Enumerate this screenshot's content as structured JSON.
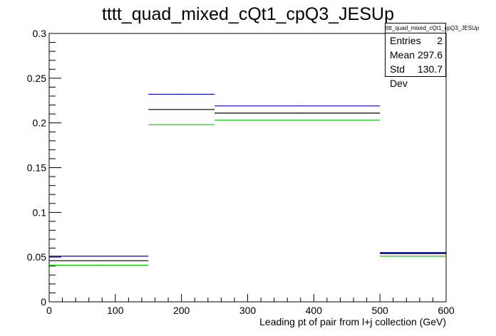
{
  "chart_data": {
    "type": "histogram",
    "title": "tttt_quad_mixed_cQt1_cpQ3_JESUp",
    "xlabel": "Leading pt of pair from l+j collection (GeV)",
    "ylabel": "",
    "xlim": [
      0,
      600
    ],
    "ylim": [
      0,
      0.3
    ],
    "x_ticks": [
      "0",
      "100",
      "200",
      "300",
      "400",
      "500",
      "600"
    ],
    "y_ticks": [
      "0",
      "0.05",
      "0.1",
      "0.15",
      "0.2",
      "0.25",
      "0.3"
    ],
    "bin_edges": [
      0,
      150,
      250,
      500,
      600
    ],
    "series": [
      {
        "color": "#0000cc",
        "values": [
          0.051,
          0.232,
          0.219,
          0.055
        ]
      },
      {
        "color": "#000000",
        "values": [
          0.046,
          0.215,
          0.211,
          0.054
        ]
      },
      {
        "color": "#00cc00",
        "values": [
          0.041,
          0.198,
          0.203,
          0.051
        ]
      }
    ],
    "stats": {
      "title": "tttt_quad_mixed_cQt1_cpQ3_JESUp",
      "rows": [
        {
          "label": "Entries",
          "value": "2"
        },
        {
          "label": "Mean",
          "value": "297.6"
        },
        {
          "label": "Std Dev",
          "value": "130.7"
        }
      ]
    }
  }
}
